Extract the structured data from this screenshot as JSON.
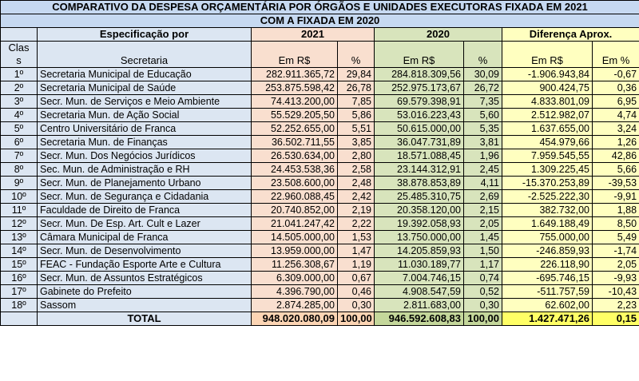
{
  "title_line1": "COMPARATIVO DA DESPESA ORÇAMENTÁRIA POR ÓRGÃOS E UNIDADES EXECUTORAS FIXADA EM 2021",
  "title_line2": "COM A FIXADA EM 2020",
  "headers": {
    "especificacao": "Especificação por",
    "y2021": "2021",
    "y2020": "2020",
    "diferenca": "Diferença Aprox.",
    "clas_l1": "Clas",
    "clas_l2": "s",
    "secretaria": "Secretaria",
    "em_rs_2021": "Em R$",
    "pct_2021": "%",
    "em_rs_2020": "Em R$",
    "pct_2020": "%",
    "em_rs_dif": "Em R$",
    "pct_dif": "Em %"
  },
  "rows": [
    {
      "rank": "1º",
      "name": "Secretaria Municipal de Educação",
      "v2021": "282.911.365,72",
      "p2021": "29,84",
      "v2020": "284.818.309,56",
      "p2020": "30,09",
      "dif": "-1.906.943,84",
      "difp": "-0,67"
    },
    {
      "rank": "2º",
      "name": "Secretaria Municipal de Saúde",
      "v2021": "253.875.598,42",
      "p2021": "26,78",
      "v2020": "252.975.173,67",
      "p2020": "26,72",
      "dif": "900.424,75",
      "difp": "0,36"
    },
    {
      "rank": "3º",
      "name": "Secr. Mun. de Serviços e Meio Ambiente",
      "v2021": "74.413.200,00",
      "p2021": "7,85",
      "v2020": "69.579.398,91",
      "p2020": "7,35",
      "dif": "4.833.801,09",
      "difp": "6,95"
    },
    {
      "rank": "4º",
      "name": "Secretaria Mun. de Ação Social",
      "v2021": "55.529.205,50",
      "p2021": "5,86",
      "v2020": "53.016.223,43",
      "p2020": "5,60",
      "dif": "2.512.982,07",
      "difp": "4,74"
    },
    {
      "rank": "5º",
      "name": "Centro Universitário de Franca",
      "v2021": "52.252.655,00",
      "p2021": "5,51",
      "v2020": "50.615.000,00",
      "p2020": "5,35",
      "dif": "1.637.655,00",
      "difp": "3,24"
    },
    {
      "rank": "6º",
      "name": "Secretaria Mun. de Finanças",
      "v2021": "36.502.711,55",
      "p2021": "3,85",
      "v2020": "36.047.731,89",
      "p2020": "3,81",
      "dif": "454.979,66",
      "difp": "1,26"
    },
    {
      "rank": "7º",
      "name": "Secr. Mun. Dos Negócios Jurídicos",
      "v2021": "26.530.634,00",
      "p2021": "2,80",
      "v2020": "18.571.088,45",
      "p2020": "1,96",
      "dif": "7.959.545,55",
      "difp": "42,86"
    },
    {
      "rank": "8º",
      "name": "Sec. Mun. de Administração e RH",
      "v2021": "24.453.538,36",
      "p2021": "2,58",
      "v2020": "23.144.312,91",
      "p2020": "2,45",
      "dif": "1.309.225,45",
      "difp": "5,66"
    },
    {
      "rank": "9º",
      "name": "Secr. Mun. de Planejamento Urbano",
      "v2021": "23.508.600,00",
      "p2021": "2,48",
      "v2020": "38.878.853,89",
      "p2020": "4,11",
      "dif": "-15.370.253,89",
      "difp": "-39,53"
    },
    {
      "rank": "10º",
      "name": "Secr. Mun.  de Segurança e Cidadania",
      "v2021": "22.960.088,45",
      "p2021": "2,42",
      "v2020": "25.485.310,75",
      "p2020": "2,69",
      "dif": "-2.525.222,30",
      "difp": "-9,91"
    },
    {
      "rank": "11º",
      "name": "Faculdade de Direito de Franca",
      "v2021": "20.740.852,00",
      "p2021": "2,19",
      "v2020": "20.358.120,00",
      "p2020": "2,15",
      "dif": "382.732,00",
      "difp": "1,88"
    },
    {
      "rank": "12º",
      "name": "Secr. Mun. De Esp. Art. Cult e Lazer",
      "v2021": "21.041.247,42",
      "p2021": "2,22",
      "v2020": "19.392.058,93",
      "p2020": "2,05",
      "dif": "1.649.188,49",
      "difp": "8,50"
    },
    {
      "rank": "13º",
      "name": "Câmara Municipal de Franca",
      "v2021": "14.505.000,00",
      "p2021": "1,53",
      "v2020": "13.750.000,00",
      "p2020": "1,45",
      "dif": "755.000,00",
      "difp": "5,49"
    },
    {
      "rank": "14º",
      "name": "Secr.  Mun. de Desenvolvimento",
      "v2021": "13.959.000,00",
      "p2021": "1,47",
      "v2020": "14.205.859,93",
      "p2020": "1,50",
      "dif": "-246.859,93",
      "difp": "-1,74"
    },
    {
      "rank": "15º",
      "name": "FEAC - Fundação Esporte Arte e Cultura",
      "v2021": "11.256.308,67",
      "p2021": "1,19",
      "v2020": "11.030.189,77",
      "p2020": "1,17",
      "dif": "226.118,90",
      "difp": "2,05"
    },
    {
      "rank": "16º",
      "name": "Secr. Mun. de Assuntos Estratégicos",
      "v2021": "6.309.000,00",
      "p2021": "0,67",
      "v2020": "7.004.746,15",
      "p2020": "0,74",
      "dif": "-695.746,15",
      "difp": "-9,93"
    },
    {
      "rank": "17º",
      "name": "Gabinete do Prefeito",
      "v2021": "4.396.790,00",
      "p2021": "0,46",
      "v2020": "4.908.547,59",
      "p2020": "0,52",
      "dif": "-511.757,59",
      "difp": "-10,43"
    },
    {
      "rank": "18º",
      "name": "Sassom",
      "v2021": "2.874.285,00",
      "p2021": "0,30",
      "v2020": "2.811.683,00",
      "p2020": "0,30",
      "dif": "62.602,00",
      "difp": "2,23"
    }
  ],
  "total": {
    "label": "TOTAL",
    "v2021": "948.020.080,09",
    "p2021": "100,00",
    "v2020": "946.592.608,83",
    "p2020": "100,00",
    "dif": "1.427.471,26",
    "difp": "0,15"
  }
}
